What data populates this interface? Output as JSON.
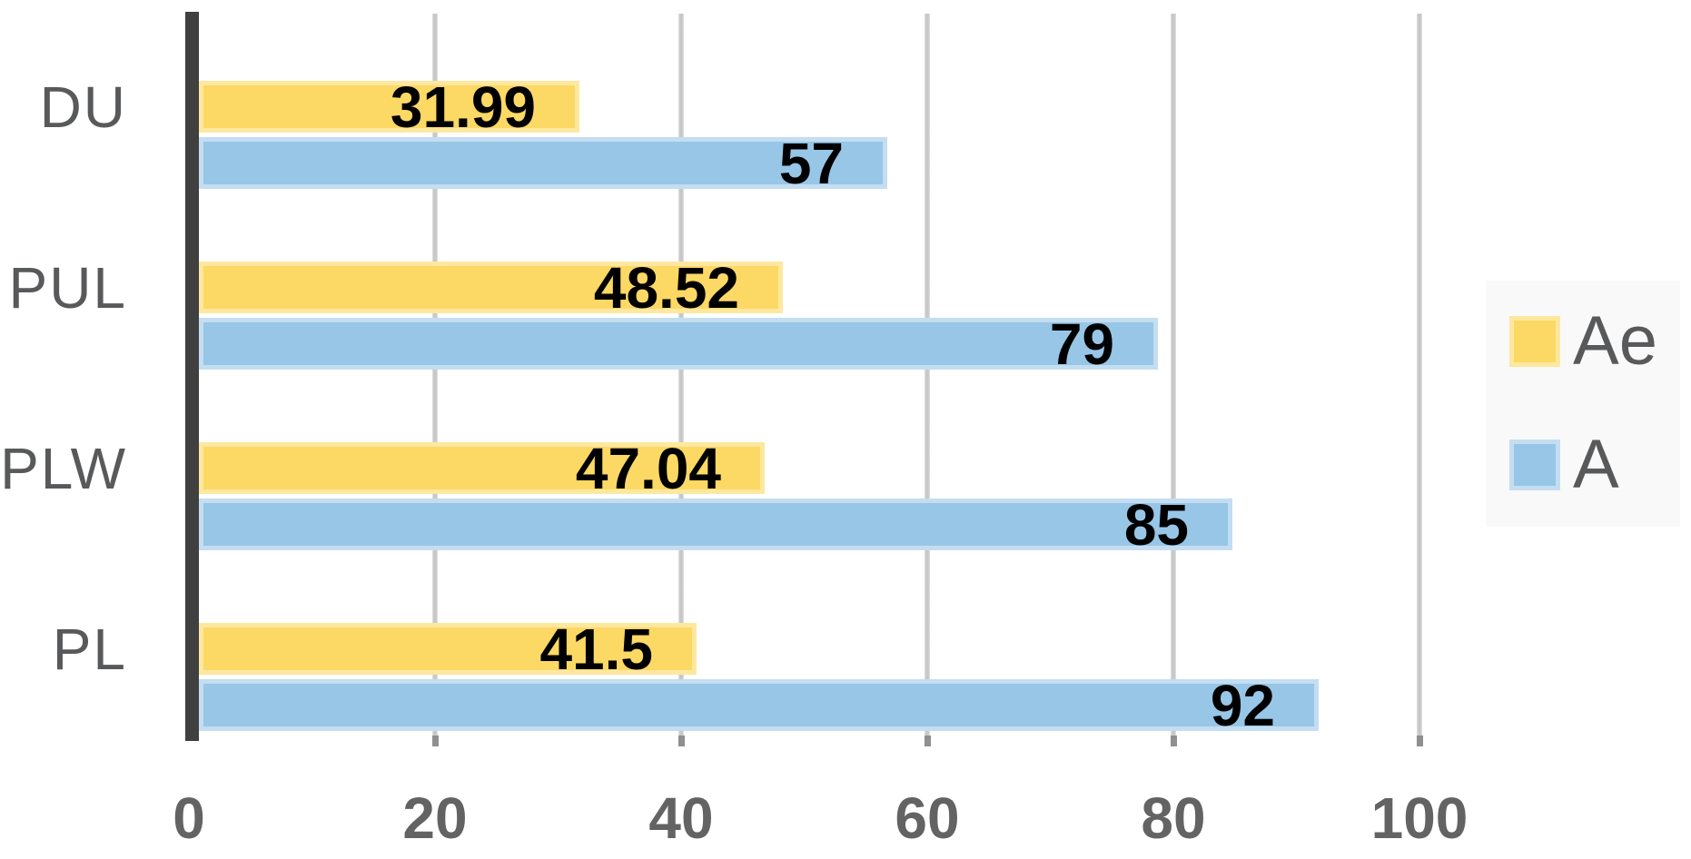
{
  "chart_data": {
    "type": "bar",
    "orientation": "horizontal",
    "title": "",
    "categories": [
      "DU",
      "PUL",
      "PLW",
      "PL"
    ],
    "series": [
      {
        "name": "Ae",
        "color": "#fcd865",
        "edge_color": "#fee8a0",
        "values": [
          31.99,
          48.52,
          47.04,
          41.5
        ],
        "labels": [
          "31.99",
          "48.52",
          "47.04",
          "41.5"
        ]
      },
      {
        "name": "A",
        "color": "#97c6e7",
        "edge_color": "#c4ddf1",
        "values": [
          57,
          79,
          85,
          92
        ],
        "labels": [
          "57",
          "79",
          "85",
          "92"
        ]
      }
    ],
    "xlim": [
      0,
      100
    ],
    "x_ticks": [
      0,
      20,
      40,
      60,
      80,
      100
    ],
    "grid": "vertical-major",
    "legend_position": "right",
    "colors": {
      "axis_line": "#404040",
      "gridline": "#c7c7c7",
      "tick_mark": "#8f8f8f",
      "tick_label": "#636363",
      "category_label": "#58595b",
      "data_label": "#000000",
      "legend_text": "#58595b",
      "legend_background": "#f9f9f9"
    }
  }
}
